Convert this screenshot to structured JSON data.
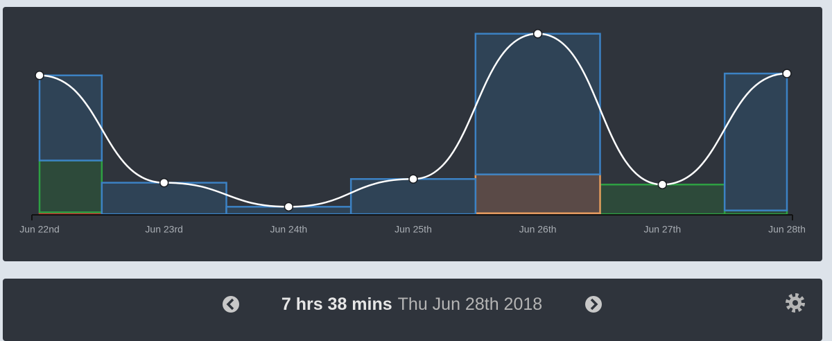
{
  "chart_data": {
    "type": "stacked-step",
    "categories": [
      "Jun 22nd",
      "Jun 23rd",
      "Jun 24th",
      "Jun 25th",
      "Jun 26th",
      "Jun 27th",
      "Jun 28th"
    ],
    "series": [
      {
        "color": "#d0312d",
        "fill": "#5a2e30",
        "values": [
          0.1,
          0,
          0,
          0,
          0,
          0,
          0
        ]
      },
      {
        "color": "#2ea043",
        "fill": "#2d4a3a",
        "values": [
          2.8,
          0,
          0,
          0,
          0,
          1.6,
          0.2
        ]
      },
      {
        "color": "#c77dc4",
        "fill": "#4e3f50",
        "values": [
          0,
          0,
          0,
          0,
          0.05,
          0,
          0
        ]
      },
      {
        "color": "#e39a5c",
        "fill": "#5a4a47",
        "values": [
          0,
          0,
          0,
          0,
          2.1,
          0,
          0
        ]
      },
      {
        "color": "#3c82c4",
        "fill": "#2f4356",
        "values": [
          4.6,
          1.7,
          0.4,
          1.9,
          7.6,
          0,
          7.4
        ]
      }
    ],
    "line": {
      "color": "#ffffff",
      "values": [
        7.5,
        1.7,
        0.4,
        1.9,
        9.75,
        1.6,
        7.6
      ]
    }
  },
  "footer": {
    "duration": "7 hrs 38 mins",
    "date": "Thu Jun 28th 2018"
  }
}
